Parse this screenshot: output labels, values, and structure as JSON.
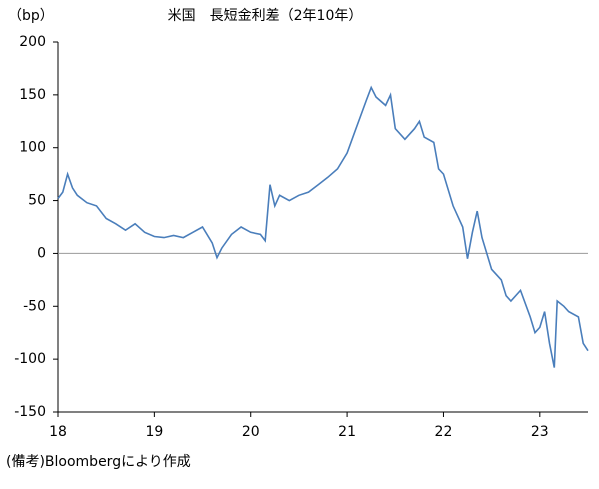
{
  "chart_data": {
    "type": "line",
    "title": "米国　長短金利差（2年10年）",
    "y_label": "（bp）",
    "note": "(備考)Bloombergにより作成",
    "x": [
      18.0,
      18.05,
      18.1,
      18.15,
      18.2,
      18.3,
      18.4,
      18.5,
      18.6,
      18.7,
      18.8,
      18.9,
      19.0,
      19.1,
      19.2,
      19.3,
      19.4,
      19.5,
      19.6,
      19.65,
      19.7,
      19.8,
      19.9,
      20.0,
      20.1,
      20.15,
      20.2,
      20.25,
      20.3,
      20.4,
      20.5,
      20.6,
      20.7,
      20.8,
      20.9,
      21.0,
      21.1,
      21.2,
      21.25,
      21.3,
      21.4,
      21.45,
      21.5,
      21.6,
      21.7,
      21.75,
      21.8,
      21.9,
      21.95,
      22.0,
      22.1,
      22.2,
      22.25,
      22.3,
      22.35,
      22.4,
      22.5,
      22.6,
      22.65,
      22.7,
      22.8,
      22.9,
      22.95,
      23.0,
      23.05,
      23.1,
      23.15,
      23.18,
      23.25,
      23.3,
      23.4,
      23.45,
      23.5
    ],
    "series": [
      {
        "name": "長短金利差",
        "color": "#4a7ebb",
        "values": [
          52,
          58,
          75,
          62,
          55,
          48,
          45,
          33,
          28,
          22,
          28,
          20,
          16,
          15,
          17,
          15,
          20,
          25,
          10,
          -4,
          5,
          18,
          25,
          20,
          18,
          12,
          65,
          45,
          55,
          50,
          55,
          58,
          65,
          72,
          80,
          95,
          120,
          145,
          157,
          148,
          140,
          150,
          118,
          108,
          118,
          125,
          110,
          105,
          80,
          75,
          45,
          25,
          -5,
          20,
          40,
          15,
          -15,
          -25,
          -40,
          -45,
          -35,
          -60,
          -75,
          -70,
          -55,
          -85,
          -108,
          -45,
          -50,
          -55,
          -60,
          -85,
          -92
        ]
      }
    ],
    "xlim": [
      18,
      23.5
    ],
    "xticks": [
      18,
      19,
      20,
      21,
      22,
      23
    ],
    "ylim": [
      -150,
      200
    ],
    "yticks": [
      -150,
      -100,
      -50,
      0,
      50,
      100,
      150,
      200
    ],
    "zero_line_color": "#999999"
  }
}
